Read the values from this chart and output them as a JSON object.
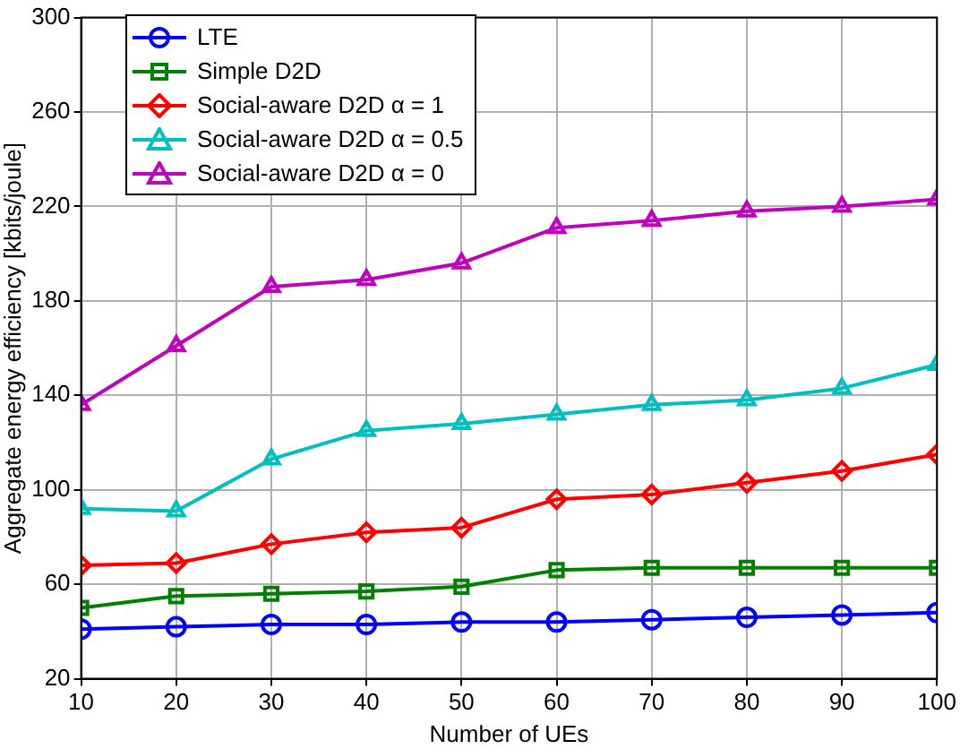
{
  "chart_data": {
    "type": "line",
    "xlabel": "Number of UEs",
    "ylabel": "Aggregate energy efficiency [kbits/joule]",
    "x": [
      10,
      20,
      30,
      40,
      50,
      60,
      70,
      80,
      90,
      100
    ],
    "series": [
      {
        "name": "LTE",
        "color": "#0000ff",
        "marker": "circle",
        "values": [
          41,
          42,
          43,
          43,
          44,
          44,
          45,
          46,
          47,
          48
        ]
      },
      {
        "name": "Simple D2D",
        "color": "#008000",
        "marker": "square",
        "values": [
          50,
          55,
          56,
          57,
          59,
          66,
          67,
          67,
          67,
          67
        ]
      },
      {
        "name": "Social-aware D2D α = 1",
        "color": "#ff0000",
        "marker": "diamond",
        "values": [
          68,
          69,
          77,
          82,
          84,
          96,
          98,
          103,
          108,
          115
        ]
      },
      {
        "name": "Social-aware D2D α = 0.5",
        "color": "#00bfbf",
        "marker": "triangle",
        "values": [
          92,
          91,
          113,
          125,
          128,
          132,
          136,
          138,
          143,
          153
        ]
      },
      {
        "name": "Social-aware D2D α = 0",
        "color": "#bf00bf",
        "marker": "triangle",
        "values": [
          136,
          161,
          186,
          189,
          196,
          211,
          214,
          218,
          220,
          223
        ]
      }
    ],
    "xlim": [
      10,
      100
    ],
    "xticks": [
      10,
      20,
      30,
      40,
      50,
      60,
      70,
      80,
      90,
      100
    ],
    "ylim": [
      20,
      300
    ],
    "yticks": [
      20,
      60,
      100,
      140,
      180,
      220,
      260,
      300
    ],
    "grid": true,
    "legend": "top left",
    "line_style": "solid"
  }
}
